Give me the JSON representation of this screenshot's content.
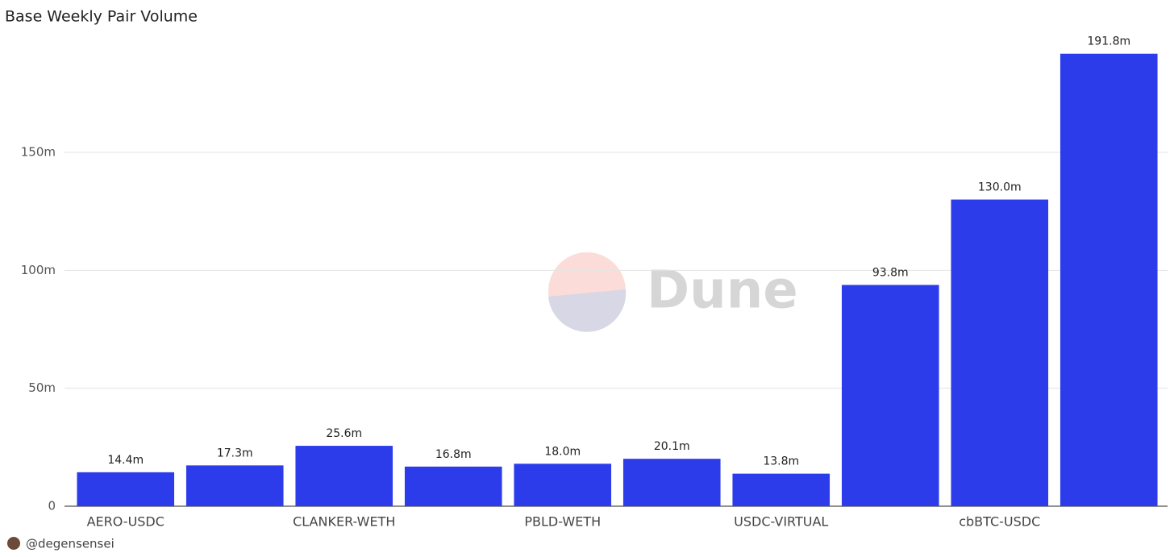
{
  "chart_data": {
    "type": "bar",
    "title": "Base Weekly Pair Volume",
    "categories": [
      "AERO-USDC",
      null,
      "CLANKER-WETH",
      null,
      "PBLD-WETH",
      null,
      "USDC-VIRTUAL",
      null,
      "cbBTC-USDC",
      null
    ],
    "values": [
      14.4,
      17.3,
      25.6,
      16.8,
      18.0,
      20.1,
      13.8,
      93.8,
      130.0,
      191.8
    ],
    "value_labels": [
      "14.4m",
      "17.3m",
      "25.6m",
      "16.8m",
      "18.0m",
      "20.1m",
      "13.8m",
      "93.8m",
      "130.0m",
      "191.8m"
    ],
    "color": "#2c3ceb",
    "ylim": [
      0,
      200
    ],
    "yticks": [
      0,
      {
        "value": 50,
        "label": "50m"
      },
      {
        "value": 100,
        "label": "100m"
      },
      {
        "value": 150,
        "label": "150m"
      }
    ],
    "grid": true,
    "watermark": "Dune",
    "author": "@degensensei"
  }
}
